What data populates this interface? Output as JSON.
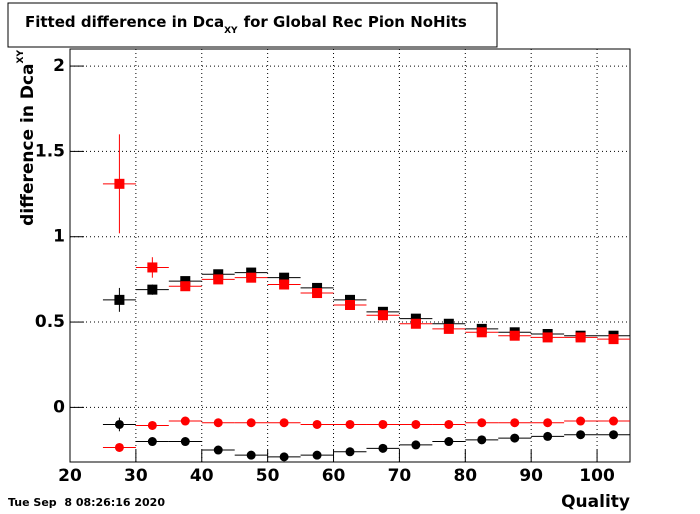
{
  "chart_data": {
    "type": "scatter",
    "title": "Fitted difference in Dca",
    "title_sub": "XY",
    "title_rest": "for Global Rec Pion NoHits",
    "y_label": "difference in Dca",
    "y_label_sub": "XY",
    "x_label": "Quality",
    "footer": "Tue Sep  8 08:26:16 2020",
    "xlim": [
      20,
      105
    ],
    "ylim": [
      -0.32,
      2.1
    ],
    "xticks": [
      20,
      30,
      40,
      50,
      60,
      70,
      80,
      90,
      100
    ],
    "yticks": [
      0,
      0.5,
      1,
      1.5,
      2
    ],
    "grid": true,
    "x": [
      27.5,
      32.5,
      37.5,
      42.5,
      47.5,
      52.5,
      57.5,
      62.5,
      67.5,
      72.5,
      77.5,
      82.5,
      87.5,
      92.5,
      97.5,
      102.5
    ],
    "xerr": 2.5,
    "series": [
      {
        "color": "#000000",
        "marker": "square",
        "values": [
          0.63,
          0.69,
          0.74,
          0.78,
          0.79,
          0.76,
          0.7,
          0.63,
          0.56,
          0.52,
          0.49,
          0.46,
          0.44,
          0.43,
          0.42,
          0.42
        ],
        "yerr": [
          0.07,
          0.03,
          0.01,
          0.01,
          0.01,
          0.01,
          0.01,
          0.01,
          0.01,
          0.01,
          0.01,
          0.01,
          0.01,
          0.01,
          0.01,
          0.01
        ]
      },
      {
        "color": "#ff0000",
        "marker": "square",
        "values": [
          1.31,
          0.82,
          0.71,
          0.75,
          0.76,
          0.72,
          0.67,
          0.6,
          0.54,
          0.49,
          0.46,
          0.44,
          0.42,
          0.41,
          0.41,
          0.4
        ],
        "yerr": [
          0.29,
          0.06,
          0.02,
          0.01,
          0.01,
          0.01,
          0.01,
          0.01,
          0.01,
          0.01,
          0.01,
          0.01,
          0.01,
          0.01,
          0.01,
          0.01
        ]
      },
      {
        "color": "#ff0000",
        "marker": "circle",
        "values": [
          -0.235,
          -0.106,
          -0.08,
          -0.09,
          -0.09,
          -0.09,
          -0.1,
          -0.1,
          -0.1,
          -0.1,
          -0.1,
          -0.09,
          -0.09,
          -0.09,
          -0.08,
          -0.08
        ],
        "yerr": [
          0.02,
          0.02,
          0.01,
          0.01,
          0.01,
          0.01,
          0.01,
          0.01,
          0.01,
          0.01,
          0.01,
          0.01,
          0.01,
          0.01,
          0.01,
          0.01
        ]
      },
      {
        "color": "#000000",
        "marker": "circle",
        "values": [
          -0.1,
          -0.2,
          -0.2,
          -0.25,
          -0.28,
          -0.29,
          -0.28,
          -0.26,
          -0.24,
          -0.22,
          -0.2,
          -0.19,
          -0.18,
          -0.17,
          -0.16,
          -0.16
        ],
        "yerr": [
          0.04,
          0.02,
          0.01,
          0.01,
          0.01,
          0.01,
          0.01,
          0.01,
          0.01,
          0.01,
          0.01,
          0.01,
          0.01,
          0.01,
          0.01,
          0.01
        ]
      }
    ]
  }
}
